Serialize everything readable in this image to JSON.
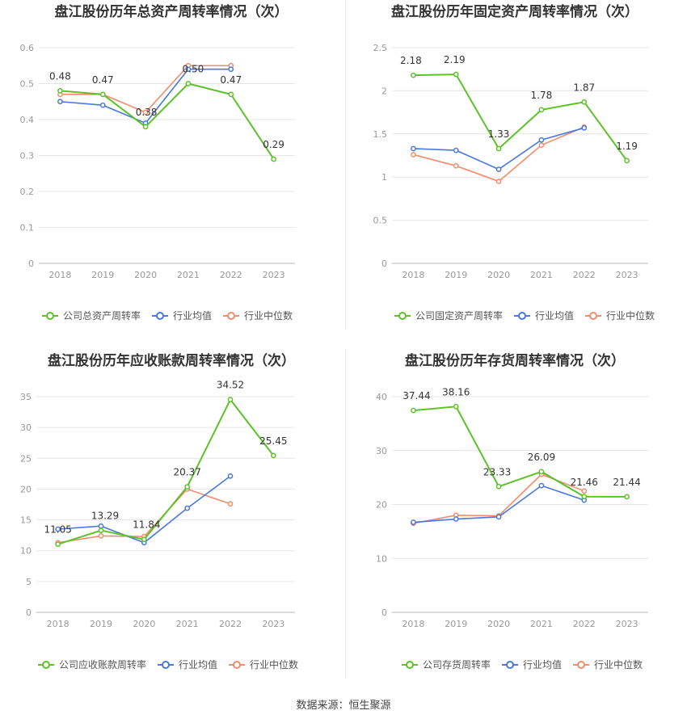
{
  "source_text": "数据来源：恒生聚源",
  "colors": {
    "company": "#5cc22a",
    "avg": "#4a78e0",
    "median": "#f28c6a",
    "grid": "#e6e6e6",
    "axis": "#999999",
    "title": "#333333"
  },
  "chart_data": [
    {
      "type": "line",
      "title": "盘江股份历年总资产周转率情况（次）",
      "x": [
        "2018",
        "2019",
        "2020",
        "2021",
        "2022",
        "2023"
      ],
      "yticks": [
        "0",
        "0.1",
        "0.2",
        "0.3",
        "0.4",
        "0.5",
        "0.6"
      ],
      "ylim": [
        0,
        0.6
      ],
      "legend": "bottom",
      "series": [
        {
          "name": "公司总资产周转率",
          "color": "#5cc22a",
          "values": [
            0.48,
            0.47,
            0.38,
            0.5,
            0.47,
            0.29
          ],
          "labels": [
            "0.48",
            "0.47",
            "0.38",
            "0.50",
            "0.47",
            "0.29"
          ]
        },
        {
          "name": "行业均值",
          "color": "#4a78e0",
          "values": [
            0.45,
            0.44,
            0.39,
            0.54,
            0.54,
            null
          ]
        },
        {
          "name": "行业中位数",
          "color": "#f28c6a",
          "values": [
            0.47,
            0.47,
            0.42,
            0.55,
            0.55,
            null
          ]
        }
      ]
    },
    {
      "type": "line",
      "title": "盘江股份历年固定资产周转率情况（次）",
      "x": [
        "2018",
        "2019",
        "2020",
        "2021",
        "2022",
        "2023"
      ],
      "yticks": [
        "0",
        "0.5",
        "1",
        "1.5",
        "2",
        "2.5"
      ],
      "ylim": [
        0,
        2.5
      ],
      "legend": "bottom",
      "series": [
        {
          "name": "公司固定资产周转率",
          "color": "#5cc22a",
          "values": [
            2.18,
            2.19,
            1.33,
            1.78,
            1.87,
            1.19
          ],
          "labels": [
            "2.18",
            "2.19",
            "1.33",
            "1.78",
            "1.87",
            "1.19"
          ]
        },
        {
          "name": "行业均值",
          "color": "#4a78e0",
          "values": [
            1.33,
            1.31,
            1.09,
            1.43,
            1.57,
            null
          ]
        },
        {
          "name": "行业中位数",
          "color": "#f28c6a",
          "values": [
            1.26,
            1.13,
            0.95,
            1.37,
            1.58,
            null
          ]
        }
      ]
    },
    {
      "type": "line",
      "title": "盘江股份历年应收账款周转率情况（次）",
      "x": [
        "2018",
        "2019",
        "2020",
        "2021",
        "2022",
        "2023"
      ],
      "yticks": [
        "0",
        "5",
        "10",
        "15",
        "20",
        "25",
        "30",
        "35"
      ],
      "ylim": [
        0,
        35
      ],
      "legend": "bottom",
      "series": [
        {
          "name": "公司应收账款周转率",
          "color": "#5cc22a",
          "values": [
            11.05,
            13.29,
            11.84,
            20.37,
            34.52,
            25.45
          ],
          "labels": [
            "11.05",
            "13.29",
            "11.84",
            "20.37",
            "34.52",
            "25.45"
          ]
        },
        {
          "name": "行业均值",
          "color": "#4a78e0",
          "values": [
            13.5,
            14.0,
            11.3,
            16.9,
            22.1,
            null
          ]
        },
        {
          "name": "行业中位数",
          "color": "#f28c6a",
          "values": [
            11.3,
            12.4,
            12.3,
            20.0,
            17.6,
            null
          ]
        }
      ]
    },
    {
      "type": "line",
      "title": "盘江股份历年存货周转率情况（次）",
      "x": [
        "2018",
        "2019",
        "2020",
        "2021",
        "2022",
        "2023"
      ],
      "yticks": [
        "0",
        "10",
        "20",
        "30",
        "40"
      ],
      "ylim": [
        0,
        40
      ],
      "legend": "bottom",
      "series": [
        {
          "name": "公司存货周转率",
          "color": "#5cc22a",
          "values": [
            37.44,
            38.16,
            23.33,
            26.09,
            21.46,
            21.44
          ],
          "labels": [
            "37.44",
            "38.16",
            "23.33",
            "26.09",
            "21.46",
            "21.44"
          ]
        },
        {
          "name": "行业均值",
          "color": "#4a78e0",
          "values": [
            16.7,
            17.3,
            17.7,
            23.5,
            20.8,
            null
          ]
        },
        {
          "name": "行业中位数",
          "color": "#f28c6a",
          "values": [
            16.5,
            18.0,
            17.9,
            25.6,
            22.5,
            null
          ]
        }
      ]
    }
  ]
}
